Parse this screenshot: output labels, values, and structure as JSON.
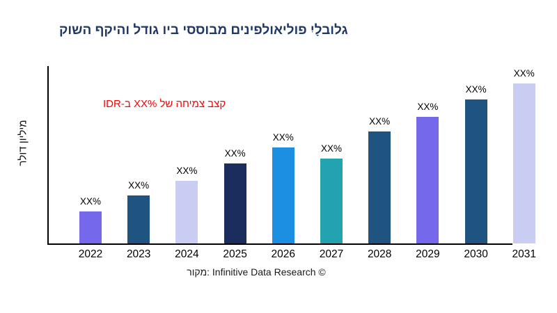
{
  "page": {
    "background": "#ffffff"
  },
  "title": {
    "text": "קושה ףקיהו לדוג ויב יססובמ םיניפלואילופ יִלָבולג",
    "color": "#203864"
  },
  "growth_note": {
    "text": "IDR-ב XX% לש החימצ בצק",
    "color": "#ff0000"
  },
  "footer": {
    "text": "רוקמ: Infinitive Data Research ©"
  },
  "chart_data": {
    "type": "bar",
    "title": "קושה ףקיהו לדוג ויב יססובמ םיניפלואילופ יִלָבולג",
    "xlabel": "",
    "ylabel": "רלוד ןוילימ",
    "categories": [
      "2022",
      "2023",
      "2024",
      "2025",
      "2026",
      "2027",
      "2028",
      "2029",
      "2030",
      "2031"
    ],
    "values": [
      20,
      30,
      39,
      50,
      60,
      53,
      70,
      79,
      90,
      100
    ],
    "value_labels": [
      "XX%",
      "XX%",
      "XX%",
      "XX%",
      "XX%",
      "XX%",
      "XX%",
      "XX%",
      "XX%",
      "XX%"
    ],
    "bar_colors": [
      "#7668ea",
      "#1f5481",
      "#c9cdf2",
      "#1b2d5c",
      "#1c8fe3",
      "#23a3b0",
      "#1f5481",
      "#7668ea",
      "#1f5481",
      "#c9cdf2"
    ],
    "ylim": [
      0,
      100
    ],
    "y_tick_labels": [],
    "grid": false,
    "legend": false,
    "annotation": "IDR-ב XX% לש החימצ בצק"
  }
}
